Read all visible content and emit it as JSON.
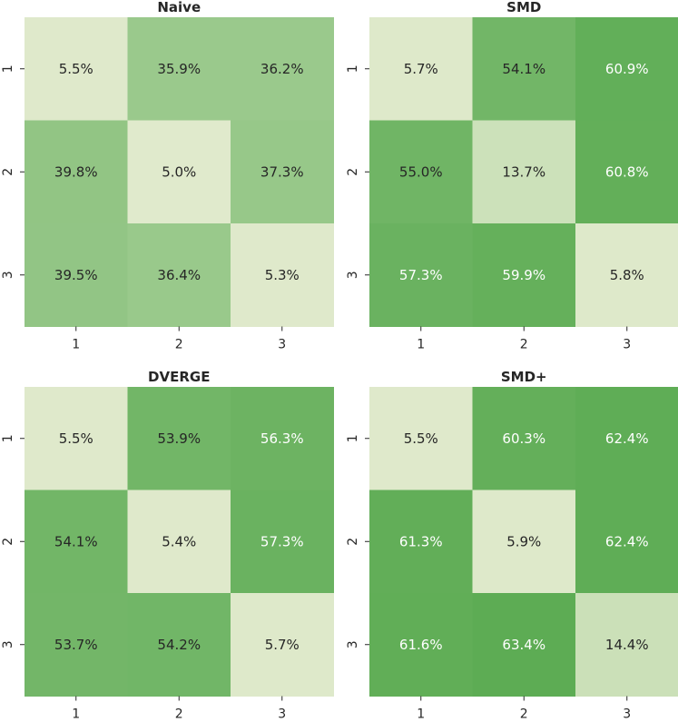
{
  "chart_data": [
    {
      "type": "heatmap",
      "title": "Naive",
      "x_categories": [
        "1",
        "2",
        "3"
      ],
      "y_categories": [
        "1",
        "2",
        "3"
      ],
      "values": [
        [
          5.5,
          35.9,
          36.2
        ],
        [
          39.8,
          5.0,
          37.3
        ],
        [
          39.5,
          36.4,
          5.3
        ]
      ],
      "labels": [
        [
          "5.5%",
          "35.9%",
          "36.2%"
        ],
        [
          "39.8%",
          "5.0%",
          "37.3%"
        ],
        [
          "39.5%",
          "36.4%",
          "5.3%"
        ]
      ],
      "value_range": [
        0,
        70
      ],
      "colormap": [
        "#ebefd6",
        "#4ea546"
      ],
      "colorbar": false
    },
    {
      "type": "heatmap",
      "title": "SMD",
      "x_categories": [
        "1",
        "2",
        "3"
      ],
      "y_categories": [
        "1",
        "2",
        "3"
      ],
      "values": [
        [
          5.7,
          54.1,
          60.9
        ],
        [
          55.0,
          13.7,
          60.8
        ],
        [
          57.3,
          59.9,
          5.8
        ]
      ],
      "labels": [
        [
          "5.7%",
          "54.1%",
          "60.9%"
        ],
        [
          "55.0%",
          "13.7%",
          "60.8%"
        ],
        [
          "57.3%",
          "59.9%",
          "5.8%"
        ]
      ],
      "value_range": [
        0,
        70
      ],
      "colormap": [
        "#ebefd6",
        "#4ea546"
      ],
      "colorbar": false
    },
    {
      "type": "heatmap",
      "title": "DVERGE",
      "x_categories": [
        "1",
        "2",
        "3"
      ],
      "y_categories": [
        "1",
        "2",
        "3"
      ],
      "values": [
        [
          5.5,
          53.9,
          56.3
        ],
        [
          54.1,
          5.4,
          57.3
        ],
        [
          53.7,
          54.2,
          5.7
        ]
      ],
      "labels": [
        [
          "5.5%",
          "53.9%",
          "56.3%"
        ],
        [
          "54.1%",
          "5.4%",
          "57.3%"
        ],
        [
          "53.7%",
          "54.2%",
          "5.7%"
        ]
      ],
      "value_range": [
        0,
        70
      ],
      "colormap": [
        "#ebefd6",
        "#4ea546"
      ],
      "colorbar": false
    },
    {
      "type": "heatmap",
      "title": "SMD+",
      "x_categories": [
        "1",
        "2",
        "3"
      ],
      "y_categories": [
        "1",
        "2",
        "3"
      ],
      "values": [
        [
          5.5,
          60.3,
          62.4
        ],
        [
          61.3,
          5.9,
          62.4
        ],
        [
          61.6,
          63.4,
          14.4
        ]
      ],
      "labels": [
        [
          "5.5%",
          "60.3%",
          "62.4%"
        ],
        [
          "61.3%",
          "5.9%",
          "62.4%"
        ],
        [
          "61.6%",
          "63.4%",
          "14.4%"
        ]
      ],
      "value_range": [
        0,
        70
      ],
      "colormap": [
        "#ebefd6",
        "#4ea546"
      ],
      "colorbar": false
    }
  ]
}
